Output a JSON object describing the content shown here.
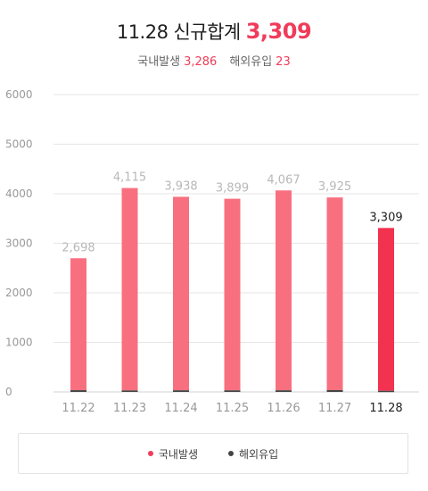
{
  "header": {
    "date": "11.28",
    "title_label": "신규합계",
    "total": "3,309",
    "domestic_label": "국내발생",
    "domestic_value": "3,286",
    "imported_label": "해외유입",
    "imported_value": "23"
  },
  "colors": {
    "accent": "#f03c5a",
    "domestic_bar": "#f8707f",
    "highlight_bar": "#f2324f",
    "imported_bar": "#444444",
    "past_label": "#b8b8b8",
    "grid": "#e6e6e6"
  },
  "chart_data": {
    "type": "bar",
    "stacked": true,
    "categories": [
      "11.22",
      "11.23",
      "11.24",
      "11.25",
      "11.26",
      "11.27",
      "11.28"
    ],
    "totals_labels": [
      "2,698",
      "4,115",
      "3,938",
      "3,899",
      "4,067",
      "3,925",
      "3,309"
    ],
    "series": [
      {
        "name": "국내발생",
        "values": [
          2663,
          4085,
          3905,
          3867,
          4034,
          3888,
          3286
        ]
      },
      {
        "name": "해외유입",
        "values": [
          35,
          30,
          33,
          32,
          33,
          37,
          23
        ]
      }
    ],
    "y_ticks": [
      0,
      1000,
      2000,
      3000,
      4000,
      5000,
      6000
    ],
    "ylim": [
      0,
      6000
    ],
    "grid": true,
    "highlight_last": true,
    "legend_position": "bottom"
  }
}
